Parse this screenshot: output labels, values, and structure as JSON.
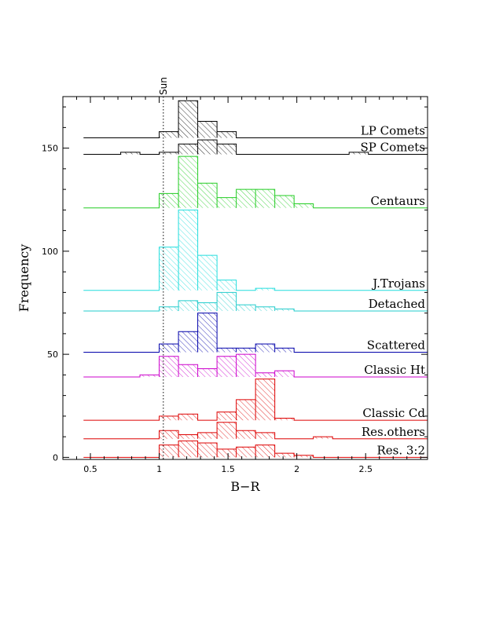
{
  "chart_data": {
    "type": "histogram",
    "title": "",
    "xlabel": "B−R",
    "ylabel": "Frequency",
    "xlim": [
      0.3,
      2.95
    ],
    "ylim": [
      -1,
      175
    ],
    "xticks": [
      0.5,
      1,
      1.5,
      2,
      2.5
    ],
    "xtick_labels": [
      "0.5",
      "1",
      "1.5",
      "2",
      "2.5"
    ],
    "yticks": [
      0,
      50,
      100,
      150
    ],
    "ytick_labels": [
      "0",
      "50",
      "100",
      "150"
    ],
    "bin_width": 0.14,
    "annotation": {
      "label": "Sun",
      "x": 1.03
    },
    "series": [
      {
        "name": "LP Comets",
        "color": "#000000",
        "baseline": 155,
        "bin_starts": [
          1.0,
          1.14,
          1.28,
          1.42
        ],
        "counts": [
          3,
          18,
          8,
          3
        ]
      },
      {
        "name": "SP Comets",
        "color": "#000000",
        "baseline": 147,
        "bin_starts": [
          0.72,
          1.0,
          1.14,
          1.28,
          1.42,
          2.38
        ],
        "counts": [
          1,
          1,
          5,
          7,
          5,
          1
        ]
      },
      {
        "name": "Centaurs",
        "color": "#22cc22",
        "baseline": 121,
        "bin_starts": [
          1.0,
          1.14,
          1.28,
          1.42,
          1.56,
          1.7,
          1.84,
          1.98
        ],
        "counts": [
          7,
          25,
          12,
          5,
          9,
          9,
          6,
          2
        ]
      },
      {
        "name": "J.Trojans",
        "color": "#22dddd",
        "baseline": 81,
        "bin_starts": [
          1.0,
          1.14,
          1.28,
          1.42,
          1.7
        ],
        "counts": [
          21,
          39,
          17,
          5,
          1
        ]
      },
      {
        "name": "Detached",
        "color": "#22cccc",
        "baseline": 71,
        "bin_starts": [
          1.0,
          1.14,
          1.28,
          1.42,
          1.56,
          1.7,
          1.84
        ],
        "counts": [
          2,
          5,
          4,
          9,
          3,
          2,
          1
        ]
      },
      {
        "name": "Scattered",
        "color": "#0000aa",
        "baseline": 51,
        "bin_starts": [
          1.0,
          1.14,
          1.28,
          1.42,
          1.56,
          1.7,
          1.84
        ],
        "counts": [
          4,
          10,
          19,
          2,
          2,
          4,
          2
        ]
      },
      {
        "name": "Classic Ht",
        "color": "#cc00cc",
        "baseline": 39,
        "bin_starts": [
          0.86,
          1.0,
          1.14,
          1.28,
          1.42,
          1.56,
          1.7,
          1.84
        ],
        "counts": [
          1,
          10,
          6,
          4,
          10,
          11,
          2,
          3
        ]
      },
      {
        "name": "Classic Cd",
        "color": "#dd0000",
        "baseline": 18,
        "bin_starts": [
          1.0,
          1.14,
          1.42,
          1.56,
          1.7,
          1.84
        ],
        "counts": [
          2,
          3,
          4,
          10,
          20,
          1
        ]
      },
      {
        "name": "Res.others",
        "color": "#dd0000",
        "baseline": 9,
        "bin_starts": [
          1.0,
          1.14,
          1.28,
          1.42,
          1.56,
          1.7,
          2.12
        ],
        "counts": [
          4,
          2,
          3,
          8,
          4,
          3,
          1
        ]
      },
      {
        "name": "Res. 3:2",
        "color": "#dd0000",
        "baseline": 0,
        "bin_starts": [
          1.0,
          1.14,
          1.28,
          1.42,
          1.56,
          1.7,
          1.84,
          1.98
        ],
        "counts": [
          6,
          8,
          7,
          4,
          5,
          6,
          2,
          1
        ]
      }
    ]
  }
}
